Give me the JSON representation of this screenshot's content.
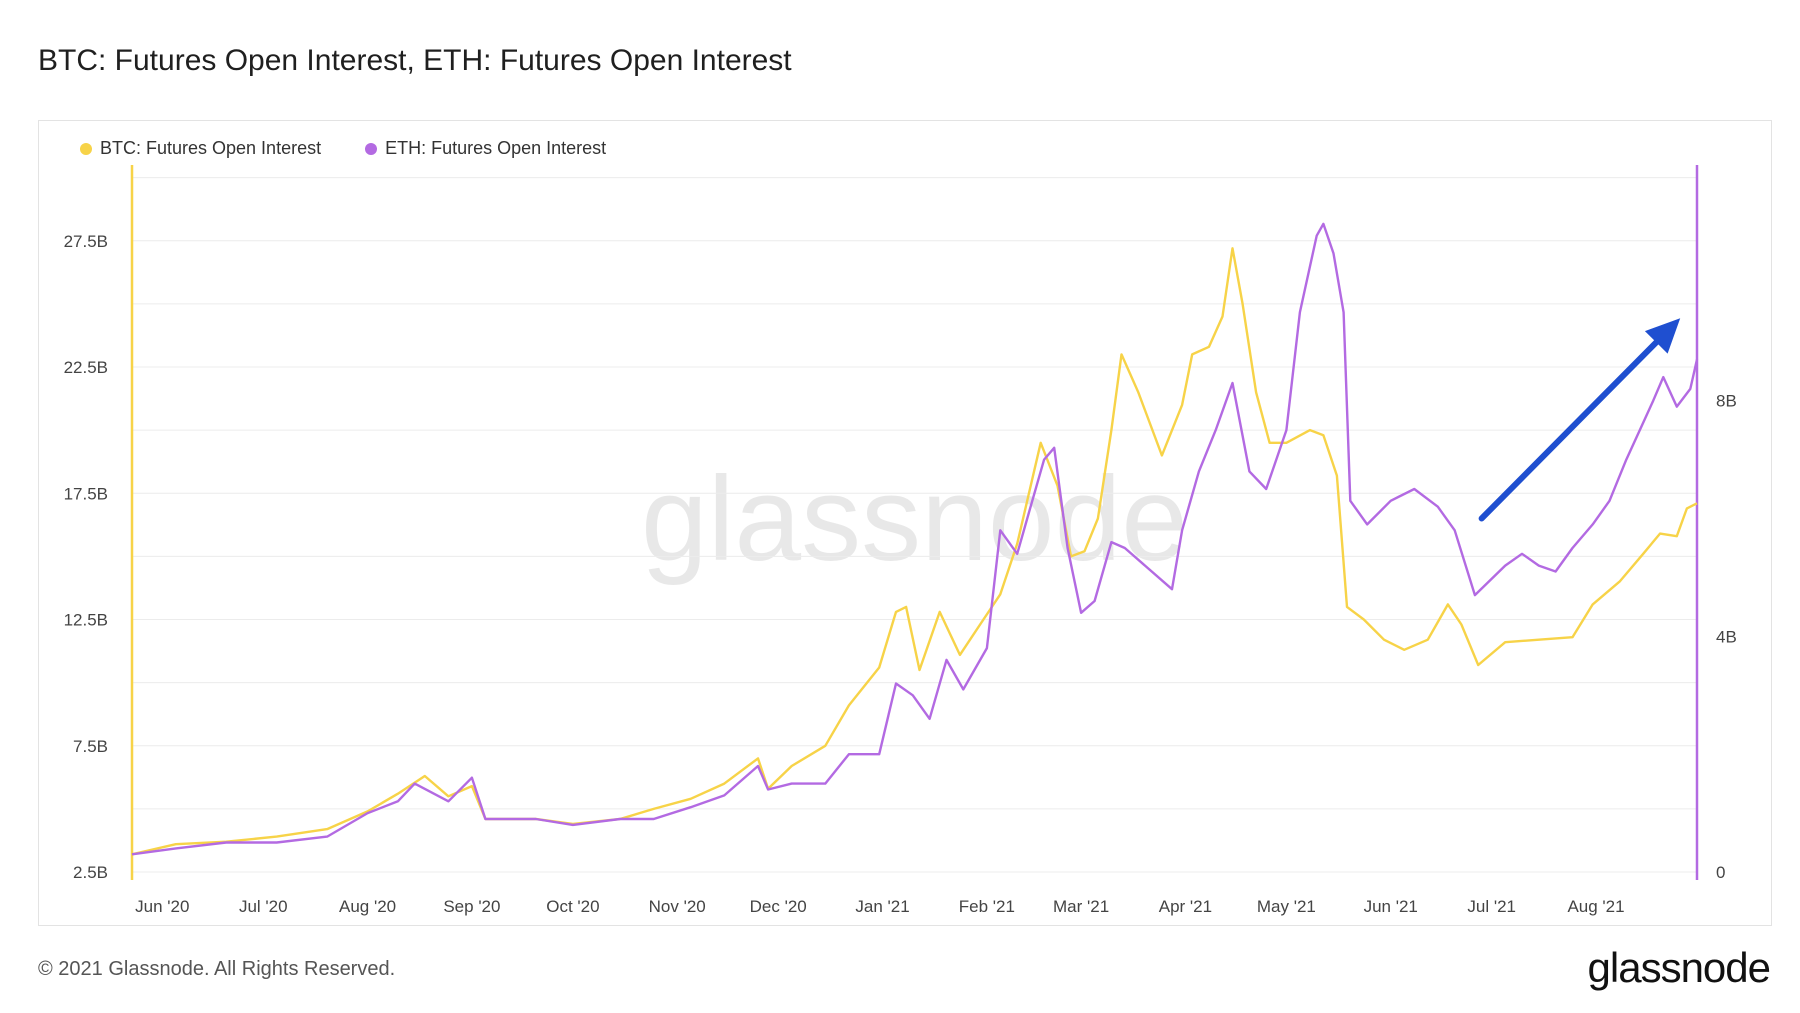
{
  "title": "BTC: Futures Open Interest, ETH: Futures Open Interest",
  "footer": {
    "copyright": "© 2021 Glassnode. All Rights Reserved.",
    "logo_text": "glassnode"
  },
  "watermark": "glassnode",
  "colors": {
    "btc": "#F7D348",
    "eth": "#B36AE2",
    "arrow": "#1F4FD0",
    "grid": "#ececec"
  },
  "chart_data": {
    "type": "line",
    "title": "BTC: Futures Open Interest, ETH: Futures Open Interest",
    "x_ticks": [
      "Jun '20",
      "Jul '20",
      "Aug '20",
      "Sep '20",
      "Oct '20",
      "Nov '20",
      "Dec '20",
      "Jan '21",
      "Feb '21",
      "Mar '21",
      "Apr '21",
      "May '21",
      "Jun '21",
      "Jul '21",
      "Aug '21"
    ],
    "y_left": {
      "ticks": [
        "2.5B",
        "7.5B",
        "12.5B",
        "17.5B",
        "22.5B",
        "27.5B"
      ],
      "range": [
        2.5,
        30.5
      ]
    },
    "y_right": {
      "ticks": [
        "0",
        "4B",
        "8B"
      ],
      "range": [
        0,
        12
      ]
    },
    "x_range": [
      "2020-05-23",
      "2021-08-31"
    ],
    "annotation": {
      "type": "arrow",
      "from": [
        "2021-06-28",
        6.0
      ],
      "to": [
        "2021-08-26",
        9.4
      ],
      "axis": "right"
    },
    "series": [
      {
        "name": "BTC: Futures Open Interest",
        "axis": "left",
        "points": [
          [
            "2020-05-23",
            3.2
          ],
          [
            "2020-06-05",
            3.6
          ],
          [
            "2020-06-20",
            3.7
          ],
          [
            "2020-07-05",
            3.9
          ],
          [
            "2020-07-20",
            4.2
          ],
          [
            "2020-08-01",
            4.9
          ],
          [
            "2020-08-10",
            5.6
          ],
          [
            "2020-08-18",
            6.3
          ],
          [
            "2020-08-25",
            5.5
          ],
          [
            "2020-09-01",
            5.9
          ],
          [
            "2020-09-05",
            4.6
          ],
          [
            "2020-09-20",
            4.6
          ],
          [
            "2020-10-01",
            4.4
          ],
          [
            "2020-10-15",
            4.6
          ],
          [
            "2020-10-25",
            5.0
          ],
          [
            "2020-11-05",
            5.4
          ],
          [
            "2020-11-15",
            6.0
          ],
          [
            "2020-11-25",
            7.0
          ],
          [
            "2020-11-28",
            5.8
          ],
          [
            "2020-12-05",
            6.7
          ],
          [
            "2020-12-15",
            7.5
          ],
          [
            "2020-12-22",
            9.1
          ],
          [
            "2020-12-31",
            10.6
          ],
          [
            "2021-01-05",
            12.8
          ],
          [
            "2021-01-08",
            13.0
          ],
          [
            "2021-01-12",
            10.5
          ],
          [
            "2021-01-18",
            12.8
          ],
          [
            "2021-01-24",
            11.1
          ],
          [
            "2021-01-30",
            12.3
          ],
          [
            "2021-02-05",
            13.5
          ],
          [
            "2021-02-10",
            15.5
          ],
          [
            "2021-02-17",
            19.5
          ],
          [
            "2021-02-22",
            17.8
          ],
          [
            "2021-02-26",
            15.0
          ],
          [
            "2021-03-02",
            15.2
          ],
          [
            "2021-03-06",
            16.5
          ],
          [
            "2021-03-10",
            20.0
          ],
          [
            "2021-03-13",
            23.0
          ],
          [
            "2021-03-18",
            21.5
          ],
          [
            "2021-03-25",
            19.0
          ],
          [
            "2021-03-31",
            21.0
          ],
          [
            "2021-04-03",
            23.0
          ],
          [
            "2021-04-08",
            23.3
          ],
          [
            "2021-04-12",
            24.5
          ],
          [
            "2021-04-15",
            27.2
          ],
          [
            "2021-04-18",
            25.0
          ],
          [
            "2021-04-22",
            21.5
          ],
          [
            "2021-04-26",
            19.5
          ],
          [
            "2021-05-01",
            19.5
          ],
          [
            "2021-05-08",
            20.0
          ],
          [
            "2021-05-12",
            19.8
          ],
          [
            "2021-05-16",
            18.2
          ],
          [
            "2021-05-19",
            13.0
          ],
          [
            "2021-05-24",
            12.5
          ],
          [
            "2021-05-30",
            11.7
          ],
          [
            "2021-06-05",
            11.3
          ],
          [
            "2021-06-12",
            11.7
          ],
          [
            "2021-06-18",
            13.1
          ],
          [
            "2021-06-22",
            12.3
          ],
          [
            "2021-06-27",
            10.7
          ],
          [
            "2021-07-05",
            11.6
          ],
          [
            "2021-07-15",
            11.7
          ],
          [
            "2021-07-25",
            11.8
          ],
          [
            "2021-07-31",
            13.1
          ],
          [
            "2021-08-08",
            14.0
          ],
          [
            "2021-08-15",
            15.1
          ],
          [
            "2021-08-20",
            15.9
          ],
          [
            "2021-08-25",
            15.8
          ],
          [
            "2021-08-28",
            16.9
          ],
          [
            "2021-08-31",
            17.1
          ]
        ]
      },
      {
        "name": "ETH: Futures Open Interest",
        "axis": "right",
        "points": [
          [
            "2020-05-23",
            0.3
          ],
          [
            "2020-06-05",
            0.4
          ],
          [
            "2020-06-20",
            0.5
          ],
          [
            "2020-07-05",
            0.5
          ],
          [
            "2020-07-20",
            0.6
          ],
          [
            "2020-08-01",
            1.0
          ],
          [
            "2020-08-10",
            1.2
          ],
          [
            "2020-08-15",
            1.5
          ],
          [
            "2020-08-25",
            1.2
          ],
          [
            "2020-09-01",
            1.6
          ],
          [
            "2020-09-05",
            0.9
          ],
          [
            "2020-09-20",
            0.9
          ],
          [
            "2020-10-01",
            0.8
          ],
          [
            "2020-10-15",
            0.9
          ],
          [
            "2020-10-25",
            0.9
          ],
          [
            "2020-11-05",
            1.1
          ],
          [
            "2020-11-15",
            1.3
          ],
          [
            "2020-11-25",
            1.8
          ],
          [
            "2020-11-28",
            1.4
          ],
          [
            "2020-12-05",
            1.5
          ],
          [
            "2020-12-15",
            1.5
          ],
          [
            "2020-12-22",
            2.0
          ],
          [
            "2020-12-31",
            2.0
          ],
          [
            "2021-01-05",
            3.2
          ],
          [
            "2021-01-10",
            3.0
          ],
          [
            "2021-01-15",
            2.6
          ],
          [
            "2021-01-20",
            3.6
          ],
          [
            "2021-01-25",
            3.1
          ],
          [
            "2021-02-01",
            3.8
          ],
          [
            "2021-02-05",
            5.8
          ],
          [
            "2021-02-10",
            5.4
          ],
          [
            "2021-02-14",
            6.2
          ],
          [
            "2021-02-18",
            7.0
          ],
          [
            "2021-02-21",
            7.2
          ],
          [
            "2021-02-25",
            5.5
          ],
          [
            "2021-03-01",
            4.4
          ],
          [
            "2021-03-05",
            4.6
          ],
          [
            "2021-03-10",
            5.6
          ],
          [
            "2021-03-14",
            5.5
          ],
          [
            "2021-03-20",
            5.2
          ],
          [
            "2021-03-28",
            4.8
          ],
          [
            "2021-03-31",
            5.8
          ],
          [
            "2021-04-05",
            6.8
          ],
          [
            "2021-04-10",
            7.5
          ],
          [
            "2021-04-15",
            8.3
          ],
          [
            "2021-04-20",
            6.8
          ],
          [
            "2021-04-25",
            6.5
          ],
          [
            "2021-05-01",
            7.5
          ],
          [
            "2021-05-05",
            9.5
          ],
          [
            "2021-05-10",
            10.8
          ],
          [
            "2021-05-12",
            11.0
          ],
          [
            "2021-05-15",
            10.5
          ],
          [
            "2021-05-18",
            9.5
          ],
          [
            "2021-05-20",
            6.3
          ],
          [
            "2021-05-25",
            5.9
          ],
          [
            "2021-06-01",
            6.3
          ],
          [
            "2021-06-08",
            6.5
          ],
          [
            "2021-06-15",
            6.2
          ],
          [
            "2021-06-20",
            5.8
          ],
          [
            "2021-06-26",
            4.7
          ],
          [
            "2021-07-05",
            5.2
          ],
          [
            "2021-07-10",
            5.4
          ],
          [
            "2021-07-15",
            5.2
          ],
          [
            "2021-07-20",
            5.1
          ],
          [
            "2021-07-25",
            5.5
          ],
          [
            "2021-07-31",
            5.9
          ],
          [
            "2021-08-05",
            6.3
          ],
          [
            "2021-08-10",
            7.0
          ],
          [
            "2021-08-14",
            7.5
          ],
          [
            "2021-08-18",
            8.0
          ],
          [
            "2021-08-21",
            8.4
          ],
          [
            "2021-08-25",
            7.9
          ],
          [
            "2021-08-29",
            8.2
          ],
          [
            "2021-08-31",
            8.7
          ]
        ]
      }
    ]
  }
}
